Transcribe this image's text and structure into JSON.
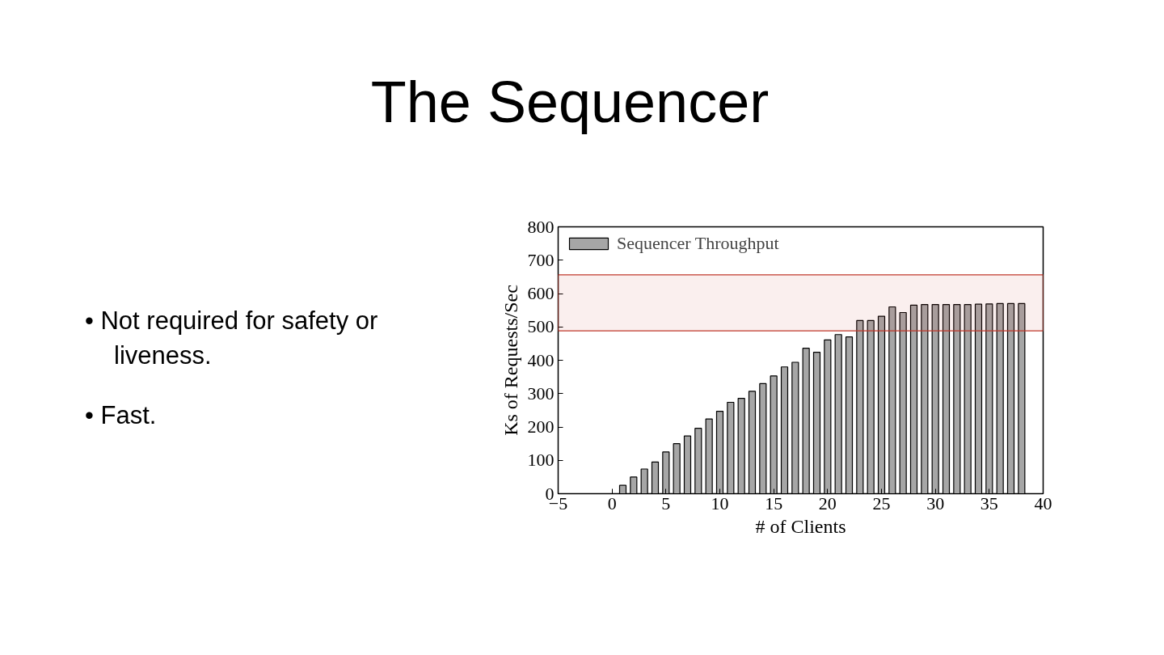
{
  "chart_data": {
    "type": "bar",
    "title": "The Sequencer",
    "annotations": [
      "• Not required for safety or liveness.",
      "• Fast."
    ],
    "xlabel": "# of Clients",
    "ylabel": "Ks of Requests/Sec",
    "x": [
      1,
      2,
      3,
      4,
      5,
      6,
      7,
      8,
      9,
      10,
      11,
      12,
      13,
      14,
      15,
      16,
      17,
      18,
      19,
      20,
      21,
      22,
      23,
      24,
      25,
      26,
      27,
      28,
      29,
      30,
      31,
      32,
      33,
      34,
      35,
      36,
      37,
      38
    ],
    "series": [
      {
        "name": "Sequencer Throughput",
        "color": "#a6a6a6",
        "values": [
          25,
          50,
          74,
          95,
          125,
          150,
          173,
          196,
          224,
          247,
          274,
          286,
          307,
          330,
          353,
          380,
          394,
          436,
          424,
          461,
          477,
          470,
          519,
          519,
          532,
          560,
          543,
          565,
          567,
          567,
          567,
          567,
          567,
          568,
          569,
          570,
          570,
          570
        ]
      }
    ],
    "xlim": [
      -5,
      40
    ],
    "xticks": [
      -5,
      0,
      5,
      10,
      15,
      20,
      25,
      30,
      35,
      40
    ],
    "ylim": [
      0,
      800
    ],
    "yticks": [
      0,
      100,
      200,
      300,
      400,
      500,
      600,
      700,
      800
    ],
    "bands": [
      {
        "axis": "y",
        "from": 488,
        "to": 656,
        "color": "#c0392b"
      }
    ],
    "grid": false,
    "legend": "top left"
  }
}
